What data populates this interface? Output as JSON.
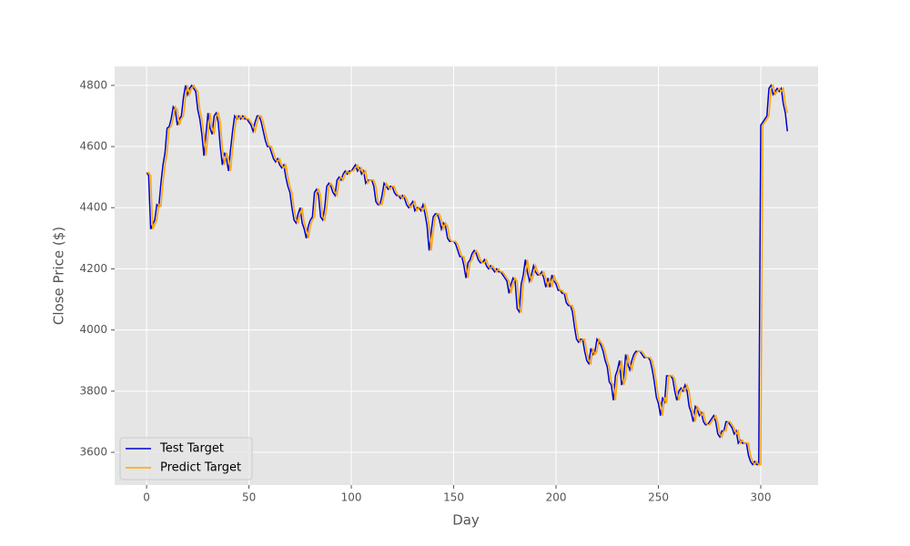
{
  "chart_data": {
    "type": "line",
    "xlabel": "Day",
    "ylabel": "Close Price ($)",
    "xlim": [
      -15.6,
      328
    ],
    "ylim": [
      3493,
      4862
    ],
    "xticks": [
      0,
      50,
      100,
      150,
      200,
      250,
      300
    ],
    "yticks": [
      3600,
      3800,
      4000,
      4200,
      4400,
      4600,
      4800
    ],
    "grid": true,
    "legend": "lower left",
    "x": [
      0,
      1,
      2,
      3,
      4,
      5,
      6,
      7,
      8,
      9,
      10,
      11,
      12,
      13,
      14,
      15,
      16,
      17,
      18,
      19,
      20,
      21,
      22,
      23,
      24,
      25,
      26,
      27,
      28,
      29,
      30,
      31,
      32,
      33,
      34,
      35,
      36,
      37,
      38,
      39,
      40,
      41,
      42,
      43,
      44,
      45,
      46,
      47,
      48,
      49,
      50,
      51,
      52,
      53,
      54,
      55,
      56,
      57,
      58,
      59,
      60,
      61,
      62,
      63,
      64,
      65,
      66,
      67,
      68,
      69,
      70,
      71,
      72,
      73,
      74,
      75,
      76,
      77,
      78,
      79,
      80,
      81,
      82,
      83,
      84,
      85,
      86,
      87,
      88,
      89,
      90,
      91,
      92,
      93,
      94,
      95,
      96,
      97,
      98,
      99,
      100,
      101,
      102,
      103,
      104,
      105,
      106,
      107,
      108,
      109,
      110,
      111,
      112,
      113,
      114,
      115,
      116,
      117,
      118,
      119,
      120,
      121,
      122,
      123,
      124,
      125,
      126,
      127,
      128,
      129,
      130,
      131,
      132,
      133,
      134,
      135,
      136,
      137,
      138,
      139,
      140,
      141,
      142,
      143,
      144,
      145,
      146,
      147,
      148,
      149,
      150,
      151,
      152,
      153,
      154,
      155,
      156,
      157,
      158,
      159,
      160,
      161,
      162,
      163,
      164,
      165,
      166,
      167,
      168,
      169,
      170,
      171,
      172,
      173,
      174,
      175,
      176,
      177,
      178,
      179,
      180,
      181,
      182,
      183,
      184,
      185,
      186,
      187,
      188,
      189,
      190,
      191,
      192,
      193,
      194,
      195,
      196,
      197,
      198,
      199,
      200,
      201,
      202,
      203,
      204,
      205,
      206,
      207,
      208,
      209,
      210,
      211,
      212,
      213,
      214,
      215,
      216,
      217,
      218,
      219,
      220,
      221,
      222,
      223,
      224,
      225,
      226,
      227,
      228,
      229,
      230,
      231,
      232,
      233,
      234,
      235,
      236,
      237,
      238,
      239,
      240,
      241,
      242,
      243,
      244,
      245,
      246,
      247,
      248,
      249,
      250,
      251,
      252,
      253,
      254,
      255,
      256,
      257,
      258,
      259,
      260,
      261,
      262,
      263,
      264,
      265,
      266,
      267,
      268,
      269,
      270,
      271,
      272,
      273,
      274,
      275,
      276,
      277,
      278,
      279,
      280,
      281,
      282,
      283,
      284,
      285,
      286,
      287,
      288,
      289,
      290,
      291,
      292,
      293,
      294,
      295,
      296,
      297,
      298,
      299,
      300,
      301,
      302,
      303,
      304,
      305,
      306,
      307,
      308,
      309,
      310,
      311,
      312,
      313
    ],
    "series": [
      {
        "name": "Test Target",
        "color": "#0000cd",
        "values": [
          4515,
          4505,
          4330,
          4345,
          4360,
          4410,
          4405,
          4480,
          4540,
          4580,
          4660,
          4665,
          4690,
          4730,
          4720,
          4670,
          4690,
          4700,
          4760,
          4800,
          4770,
          4790,
          4800,
          4790,
          4780,
          4720,
          4690,
          4640,
          4570,
          4640,
          4710,
          4660,
          4640,
          4700,
          4710,
          4680,
          4600,
          4540,
          4580,
          4560,
          4520,
          4590,
          4650,
          4700,
          4690,
          4700,
          4690,
          4700,
          4690,
          4690,
          4680,
          4670,
          4650,
          4680,
          4700,
          4700,
          4680,
          4650,
          4620,
          4600,
          4600,
          4580,
          4560,
          4550,
          4560,
          4540,
          4530,
          4540,
          4500,
          4470,
          4450,
          4400,
          4360,
          4350,
          4380,
          4400,
          4350,
          4330,
          4300,
          4340,
          4360,
          4370,
          4450,
          4460,
          4440,
          4370,
          4360,
          4400,
          4470,
          4480,
          4470,
          4450,
          4440,
          4490,
          4500,
          4490,
          4510,
          4520,
          4510,
          4520,
          4520,
          4530,
          4540,
          4520,
          4530,
          4510,
          4520,
          4480,
          4490,
          4490,
          4490,
          4470,
          4420,
          4410,
          4410,
          4440,
          4480,
          4470,
          4460,
          4470,
          4470,
          4450,
          4440,
          4440,
          4430,
          4440,
          4430,
          4410,
          4400,
          4410,
          4420,
          4390,
          4400,
          4400,
          4390,
          4410,
          4380,
          4340,
          4260,
          4320,
          4370,
          4380,
          4380,
          4360,
          4330,
          4350,
          4340,
          4300,
          4290,
          4290,
          4290,
          4280,
          4260,
          4240,
          4240,
          4210,
          4170,
          4220,
          4230,
          4250,
          4260,
          4250,
          4230,
          4220,
          4220,
          4230,
          4210,
          4200,
          4210,
          4200,
          4190,
          4200,
          4190,
          4190,
          4180,
          4170,
          4160,
          4120,
          4150,
          4170,
          4160,
          4070,
          4060,
          4150,
          4180,
          4230,
          4190,
          4160,
          4180,
          4210,
          4190,
          4180,
          4180,
          4190,
          4170,
          4140,
          4170,
          4140,
          4180,
          4160,
          4150,
          4130,
          4130,
          4120,
          4120,
          4090,
          4080,
          4080,
          4060,
          4010,
          3970,
          3960,
          3970,
          3970,
          3930,
          3900,
          3890,
          3940,
          3920,
          3930,
          3970,
          3960,
          3950,
          3930,
          3900,
          3880,
          3830,
          3820,
          3770,
          3850,
          3870,
          3900,
          3820,
          3840,
          3920,
          3890,
          3870,
          3900,
          3920,
          3930,
          3930,
          3930,
          3920,
          3910,
          3910,
          3910,
          3900,
          3870,
          3830,
          3780,
          3760,
          3720,
          3780,
          3760,
          3850,
          3850,
          3850,
          3840,
          3800,
          3770,
          3800,
          3810,
          3800,
          3820,
          3800,
          3750,
          3730,
          3700,
          3750,
          3740,
          3720,
          3730,
          3700,
          3690,
          3690,
          3700,
          3710,
          3720,
          3700,
          3660,
          3650,
          3670,
          3670,
          3700,
          3700,
          3690,
          3680,
          3660,
          3670,
          3630,
          3640,
          3630,
          3630,
          3630,
          3590,
          3570,
          3560,
          3570,
          3560,
          3560,
          4670,
          4680,
          4690,
          4700,
          4790,
          4800,
          4770,
          4780,
          4790,
          4780,
          4790,
          4740,
          4710,
          4650
        ]
      },
      {
        "name": "Predict Target",
        "color": "#ffa500",
        "values": [
          4515,
          4515,
          4505,
          4330,
          4345,
          4360,
          4410,
          4405,
          4480,
          4540,
          4580,
          4660,
          4665,
          4690,
          4730,
          4720,
          4670,
          4690,
          4700,
          4760,
          4800,
          4770,
          4790,
          4800,
          4790,
          4780,
          4720,
          4690,
          4640,
          4570,
          4640,
          4710,
          4660,
          4640,
          4700,
          4710,
          4680,
          4600,
          4540,
          4580,
          4560,
          4520,
          4590,
          4650,
          4700,
          4690,
          4700,
          4690,
          4700,
          4690,
          4690,
          4680,
          4670,
          4650,
          4680,
          4700,
          4700,
          4680,
          4650,
          4620,
          4600,
          4600,
          4580,
          4560,
          4550,
          4560,
          4540,
          4530,
          4540,
          4500,
          4470,
          4450,
          4400,
          4360,
          4350,
          4380,
          4400,
          4350,
          4330,
          4300,
          4340,
          4360,
          4370,
          4450,
          4460,
          4440,
          4370,
          4360,
          4400,
          4470,
          4480,
          4470,
          4450,
          4440,
          4490,
          4500,
          4490,
          4510,
          4520,
          4510,
          4520,
          4520,
          4530,
          4540,
          4520,
          4530,
          4510,
          4520,
          4480,
          4490,
          4490,
          4490,
          4470,
          4420,
          4410,
          4410,
          4440,
          4480,
          4470,
          4460,
          4470,
          4470,
          4450,
          4440,
          4440,
          4430,
          4440,
          4430,
          4410,
          4400,
          4410,
          4420,
          4390,
          4400,
          4400,
          4390,
          4410,
          4380,
          4340,
          4260,
          4320,
          4370,
          4380,
          4380,
          4360,
          4330,
          4350,
          4340,
          4300,
          4290,
          4290,
          4290,
          4280,
          4260,
          4240,
          4240,
          4210,
          4170,
          4220,
          4230,
          4250,
          4260,
          4250,
          4230,
          4220,
          4220,
          4230,
          4210,
          4200,
          4210,
          4200,
          4190,
          4200,
          4190,
          4190,
          4180,
          4170,
          4160,
          4120,
          4150,
          4170,
          4160,
          4070,
          4060,
          4150,
          4180,
          4230,
          4190,
          4160,
          4180,
          4210,
          4190,
          4180,
          4180,
          4190,
          4170,
          4140,
          4170,
          4140,
          4180,
          4160,
          4150,
          4130,
          4130,
          4120,
          4120,
          4090,
          4080,
          4080,
          4060,
          4010,
          3970,
          3960,
          3970,
          3970,
          3930,
          3900,
          3890,
          3940,
          3920,
          3930,
          3970,
          3960,
          3950,
          3930,
          3900,
          3880,
          3830,
          3820,
          3770,
          3850,
          3870,
          3900,
          3820,
          3840,
          3920,
          3890,
          3870,
          3900,
          3920,
          3930,
          3930,
          3930,
          3920,
          3910,
          3910,
          3910,
          3900,
          3870,
          3830,
          3780,
          3760,
          3720,
          3780,
          3760,
          3850,
          3850,
          3850,
          3840,
          3800,
          3770,
          3800,
          3810,
          3800,
          3820,
          3800,
          3750,
          3730,
          3700,
          3750,
          3740,
          3720,
          3730,
          3700,
          3690,
          3690,
          3700,
          3710,
          3720,
          3700,
          3660,
          3650,
          3670,
          3670,
          3700,
          3700,
          3690,
          3680,
          3660,
          3670,
          3630,
          3640,
          3630,
          3630,
          3630,
          3590,
          3570,
          3560,
          3570,
          3560,
          3560,
          4670,
          4680,
          4690,
          4700,
          4790,
          4800,
          4770,
          4780,
          4790,
          4780,
          4790,
          4740,
          4710
        ]
      }
    ]
  }
}
